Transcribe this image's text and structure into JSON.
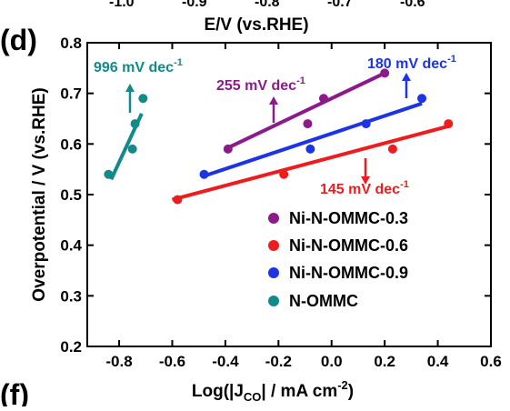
{
  "panel_labels": {
    "main": "(d)",
    "next": "(f)"
  },
  "top_strip": {
    "xlabel": "E/V (vs.RHE)",
    "tick_labels": [
      "-1.0",
      "-0.9",
      "-0.8",
      "-0.7",
      "-0.6"
    ]
  },
  "chart_data": {
    "type": "scatter",
    "xlabel": "Log(|J",
    "xlabel_sub": "CO",
    "xlabel_tail": "| / mA cm",
    "xlabel_sup": "-2",
    "xlabel_end": ")",
    "ylabel": "Overpotential / V (vs.RHE)",
    "xlim": [
      -0.92,
      0.6
    ],
    "ylim": [
      0.2,
      0.8
    ],
    "xticks": [
      -0.8,
      -0.6,
      -0.4,
      -0.2,
      0.0,
      0.2,
      0.4,
      0.6
    ],
    "xtick_labels": [
      "-0.8",
      "-0.6",
      "-0.4",
      "-0.2",
      "0.0",
      "0.2",
      "0.4",
      "0.6"
    ],
    "yticks": [
      0.2,
      0.3,
      0.4,
      0.5,
      0.6,
      0.7,
      0.8
    ],
    "ytick_labels": [
      "0.2",
      "0.3",
      "0.4",
      "0.5",
      "0.6",
      "0.7",
      "0.8"
    ],
    "legend_position": "bottom-right",
    "series": [
      {
        "name": "Ni-N-OMMC-0.3",
        "color": "#8b1a8b",
        "points": [
          [
            -0.39,
            0.59
          ],
          [
            -0.09,
            0.64
          ],
          [
            -0.03,
            0.69
          ],
          [
            0.2,
            0.74
          ]
        ],
        "fit": [
          [
            -0.4,
            0.59
          ],
          [
            0.2,
            0.74
          ]
        ],
        "slope_label": "255 mV dec",
        "slope_sup": "-1",
        "arrow": "up"
      },
      {
        "name": "Ni-N-OMMC-0.6",
        "color": "#ee1c1c",
        "points": [
          [
            -0.58,
            0.49
          ],
          [
            -0.18,
            0.54
          ],
          [
            0.23,
            0.59
          ],
          [
            0.44,
            0.64
          ]
        ],
        "fit": [
          [
            -0.6,
            0.49
          ],
          [
            0.44,
            0.635
          ]
        ],
        "slope_label": "145 mV dec",
        "slope_sup": "-1",
        "arrow": "down"
      },
      {
        "name": "Ni-N-OMMC-0.9",
        "color": "#1c33e6",
        "points": [
          [
            -0.48,
            0.54
          ],
          [
            -0.08,
            0.59
          ],
          [
            0.13,
            0.64
          ],
          [
            0.34,
            0.69
          ]
        ],
        "fit": [
          [
            -0.49,
            0.535
          ],
          [
            0.34,
            0.68
          ]
        ],
        "slope_label": "180 mV dec",
        "slope_sup": "-1",
        "arrow": "up"
      },
      {
        "name": "N-OMMC",
        "color": "#138a8a",
        "points": [
          [
            -0.84,
            0.54
          ],
          [
            -0.75,
            0.59
          ],
          [
            -0.74,
            0.64
          ],
          [
            -0.71,
            0.69
          ]
        ],
        "fit": [
          [
            -0.83,
            0.53
          ],
          [
            -0.715,
            0.66
          ]
        ],
        "slope_label": "996 mV dec",
        "slope_sup": "-1",
        "arrow": "up"
      }
    ]
  }
}
